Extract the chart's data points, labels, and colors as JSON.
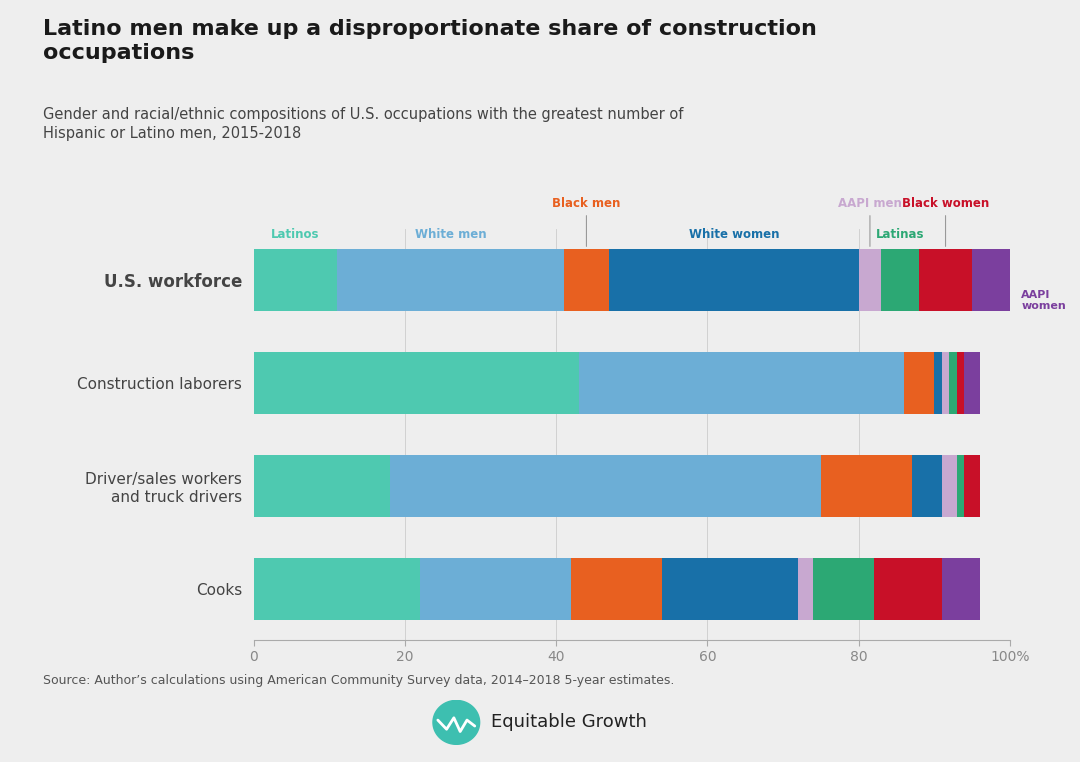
{
  "title": "Latino men make up a disproportionate share of construction\noccupations",
  "subtitle": "Gender and racial/ethnic compositions of U.S. occupations with the greatest number of\nHispanic or Latino men, 2015-2018",
  "source": "Source: Author’s calculations using American Community Survey data, 2014–2018 5-year estimates.",
  "categories": [
    "U.S. workforce",
    "Construction laborers",
    "Driver/sales workers\nand truck drivers",
    "Cooks"
  ],
  "segments": [
    "Latinos",
    "White men",
    "Black men",
    "White women",
    "AAPI men",
    "Latinas",
    "Black women",
    "AAPI women"
  ],
  "colors": [
    "#4EC9B0",
    "#6CAED6",
    "#E86020",
    "#1870A8",
    "#C8A8D0",
    "#2CA874",
    "#C81028",
    "#7B3F9E"
  ],
  "data": {
    "U.S. workforce": [
      11,
      30,
      6,
      33,
      3,
      5,
      7,
      5
    ],
    "Construction laborers": [
      43,
      43,
      4,
      1,
      1,
      1,
      1,
      2
    ],
    "Driver/sales workers\nand truck drivers": [
      18,
      57,
      12,
      4,
      2,
      1,
      2,
      0
    ],
    "Cooks": [
      22,
      20,
      12,
      18,
      2,
      8,
      9,
      5
    ]
  },
  "background_color": "#EEEEEE",
  "bar_height": 0.6
}
